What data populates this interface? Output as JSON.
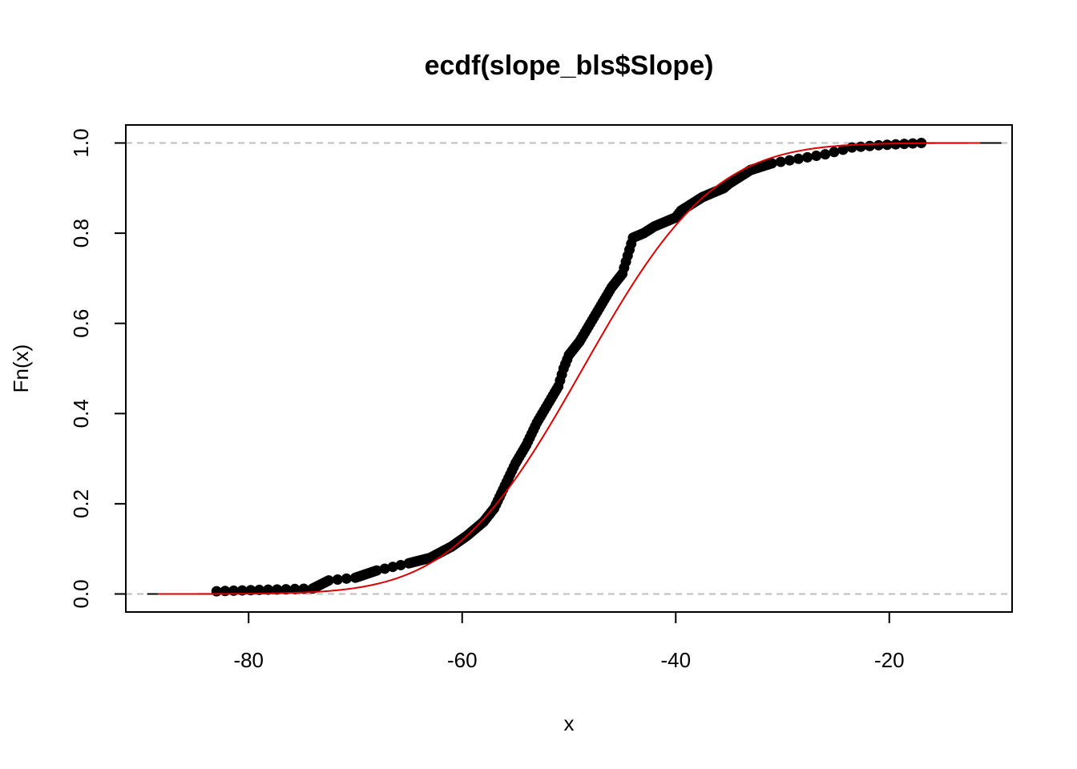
{
  "chart_data": {
    "type": "line",
    "title": "ecdf(slope_bls$Slope)",
    "xlabel": "x",
    "ylabel": "Fn(x)",
    "xlim": [
      -91.5,
      -8.5
    ],
    "ylim": [
      -0.04,
      1.04
    ],
    "x_ticks": [
      "-80",
      "-60",
      "-40",
      "-20"
    ],
    "x_tick_values": [
      -80,
      -60,
      -40,
      -20
    ],
    "y_ticks": [
      "0.0",
      "0.2",
      "0.4",
      "0.6",
      "0.8",
      "1.0"
    ],
    "y_tick_values": [
      0.0,
      0.2,
      0.4,
      0.6,
      0.8,
      1.0
    ],
    "reference_lines_y": [
      0,
      1
    ],
    "grid": false,
    "colors": {
      "ecdf": "#000000",
      "normal_fit": "#dd0000",
      "reference_line": "#bebebe"
    },
    "series": [
      {
        "kind": "ecdf-anchor-points",
        "points": [
          [
            -83.0,
            0.006
          ],
          [
            -79.0,
            0.009
          ],
          [
            -74.0,
            0.012
          ],
          [
            -72.5,
            0.03
          ],
          [
            -70.0,
            0.036
          ],
          [
            -68.0,
            0.052
          ],
          [
            -65.0,
            0.068
          ],
          [
            -63.0,
            0.08
          ],
          [
            -61.0,
            0.105
          ],
          [
            -59.5,
            0.13
          ],
          [
            -58.0,
            0.16
          ],
          [
            -57.0,
            0.19
          ],
          [
            -56.0,
            0.24
          ],
          [
            -55.0,
            0.29
          ],
          [
            -54.0,
            0.33
          ],
          [
            -53.0,
            0.38
          ],
          [
            -52.0,
            0.42
          ],
          [
            -51.0,
            0.46
          ],
          [
            -50.5,
            0.5
          ],
          [
            -50.0,
            0.53
          ],
          [
            -49.0,
            0.56
          ],
          [
            -48.0,
            0.6
          ],
          [
            -47.0,
            0.64
          ],
          [
            -46.0,
            0.68
          ],
          [
            -45.0,
            0.71
          ],
          [
            -44.5,
            0.75
          ],
          [
            -44.0,
            0.79
          ],
          [
            -43.0,
            0.8
          ],
          [
            -42.0,
            0.815
          ],
          [
            -40.0,
            0.835
          ],
          [
            -39.5,
            0.85
          ],
          [
            -38.5,
            0.865
          ],
          [
            -37.5,
            0.88
          ],
          [
            -35.5,
            0.9
          ],
          [
            -35.0,
            0.91
          ],
          [
            -33.0,
            0.94
          ],
          [
            -31.0,
            0.955
          ],
          [
            -28.5,
            0.965
          ],
          [
            -26.0,
            0.975
          ],
          [
            -23.5,
            0.99
          ],
          [
            -21.0,
            0.995
          ],
          [
            -17.0,
            1.0
          ]
        ]
      },
      {
        "kind": "normal-fit-curve",
        "mean": -48.7,
        "sd": 9.6,
        "x_range": [
          -88.5,
          -11.5
        ]
      }
    ]
  }
}
